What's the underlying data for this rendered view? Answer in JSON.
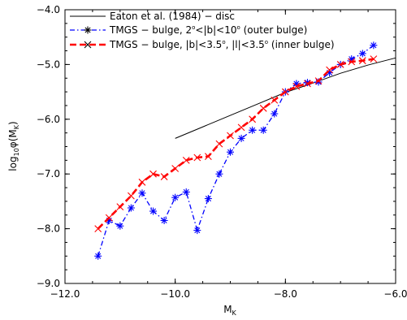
{
  "chart_data": {
    "type": "line",
    "xlabel": {
      "main": "M",
      "sub": "K"
    },
    "ylabel": {
      "pre": "log",
      "sub1": "10",
      "mid": "φ(M",
      "sub2": "K",
      "post": ")"
    },
    "xlim": [
      -12.0,
      -6.0
    ],
    "ylim": [
      -9.0,
      -4.0
    ],
    "x_ticks": [
      "-12.0",
      "-10.0",
      "-8.0",
      "-6.0"
    ],
    "y_ticks": [
      "-9.0",
      "-8.0",
      "-7.0",
      "-6.0",
      "-5.0",
      "-4.0"
    ],
    "x_tick_values": [
      -12.0,
      -10.0,
      -8.0,
      -6.0
    ],
    "y_tick_values": [
      -9.0,
      -8.0,
      -7.0,
      -6.0,
      -5.0,
      -4.0
    ],
    "legend_position": "top-left",
    "series": [
      {
        "name": "Eaton et al. (1984) − disc",
        "style": "solid",
        "color": "#000000",
        "marker": "none",
        "x": [
          -10.0,
          -9.5,
          -9.0,
          -8.5,
          -8.0,
          -7.5,
          -7.0,
          -6.5,
          -6.0
        ],
        "y": [
          -6.35,
          -6.14,
          -5.93,
          -5.72,
          -5.51,
          -5.34,
          -5.16,
          -5.01,
          -4.88
        ]
      },
      {
        "name_parts": [
          "TMGS − bulge, 2",
          "o",
          "<|b|<10",
          "o",
          " (outer bulge)"
        ],
        "style": "dash-dot",
        "color": "#0000ff",
        "marker": "star",
        "x": [
          -11.4,
          -11.2,
          -11.0,
          -10.8,
          -10.6,
          -10.4,
          -10.2,
          -10.0,
          -9.8,
          -9.6,
          -9.4,
          -9.2,
          -9.0,
          -8.8,
          -8.6,
          -8.4,
          -8.2,
          -8.0,
          -7.8,
          -7.6,
          -7.4,
          -7.2,
          -7.0,
          -6.8,
          -6.6,
          -6.4
        ],
        "y": [
          -8.5,
          -7.85,
          -7.95,
          -7.62,
          -7.35,
          -7.68,
          -7.85,
          -7.43,
          -7.33,
          -8.03,
          -7.45,
          -7.0,
          -6.6,
          -6.35,
          -6.2,
          -6.2,
          -5.9,
          -5.5,
          -5.35,
          -5.33,
          -5.32,
          -5.15,
          -5.0,
          -4.9,
          -4.8,
          -4.65
        ]
      },
      {
        "name_parts": [
          "TMGS − bulge, |b|<3.5",
          "o",
          ", |l|<3.5",
          "o",
          " (inner bulge)"
        ],
        "style": "dashed",
        "color": "#ff0000",
        "marker": "x",
        "x": [
          -11.4,
          -11.2,
          -11.0,
          -10.8,
          -10.6,
          -10.4,
          -10.2,
          -10.0,
          -9.8,
          -9.6,
          -9.4,
          -9.2,
          -9.0,
          -8.8,
          -8.6,
          -8.4,
          -8.2,
          -8.0,
          -7.8,
          -7.6,
          -7.4,
          -7.2,
          -7.0,
          -6.8,
          -6.6,
          -6.4
        ],
        "y": [
          -8.0,
          -7.8,
          -7.6,
          -7.4,
          -7.15,
          -7.0,
          -7.05,
          -6.9,
          -6.75,
          -6.7,
          -6.68,
          -6.45,
          -6.3,
          -6.15,
          -6.0,
          -5.8,
          -5.65,
          -5.5,
          -5.4,
          -5.35,
          -5.3,
          -5.1,
          -5.0,
          -4.95,
          -4.93,
          -4.9
        ]
      }
    ]
  }
}
